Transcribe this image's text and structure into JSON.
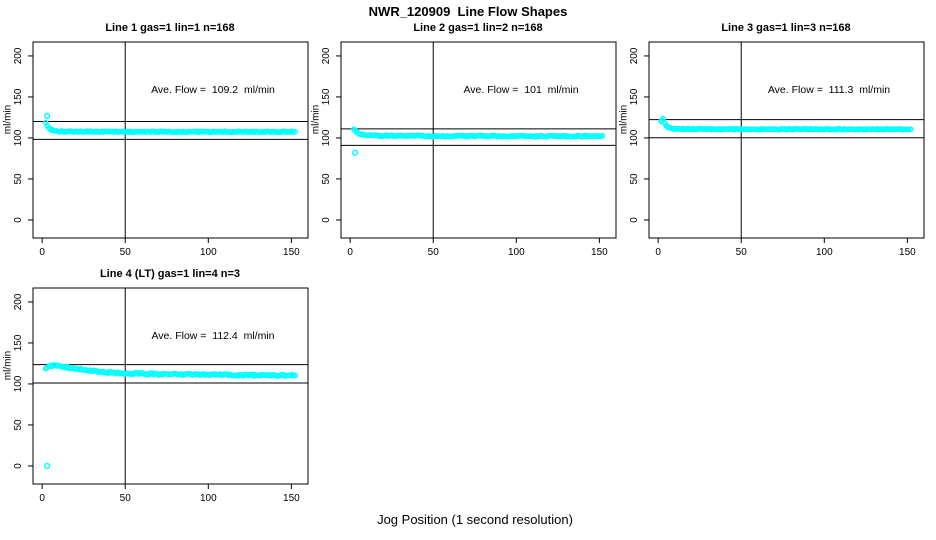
{
  "title": "NWR_120909  Line Flow Shapes",
  "chart_data": {
    "type": "scatter",
    "title": "NWR_120909  Line Flow Shapes",
    "xlabel": "Jog Position (1 second resolution)",
    "ylabel": "ml/min",
    "point_color": "#00FFFF",
    "line_color": "#000000",
    "x_ticks": [
      0,
      50,
      100,
      150
    ],
    "y_ticks": [
      0,
      50,
      100,
      150,
      200
    ],
    "xlim": [
      -5.5,
      160
    ],
    "ylim": [
      -22,
      217
    ],
    "v_line_x": 50,
    "x_start": 2,
    "x_end": 152,
    "x_step": 1,
    "legend": "none",
    "grid": false,
    "panels": [
      {
        "title": "Line 1 gas=1 lin=1 n=168",
        "n": 168,
        "ave_flow": 109.2,
        "ave_flow_label": "Ave. Flow =  109.2  ml/min",
        "h_lines": [
          98.3,
          120.1
        ],
        "outliers": [
          [
            3,
            127
          ]
        ],
        "profile": [
          [
            2,
            119
          ],
          [
            3,
            115
          ],
          [
            4,
            112
          ],
          [
            5,
            110.6
          ],
          [
            6,
            109.6
          ],
          [
            8,
            108.7
          ],
          [
            10,
            108.3
          ],
          [
            14,
            108.0
          ],
          [
            20,
            107.8
          ],
          [
            30,
            107.7
          ],
          [
            60,
            107.6
          ],
          [
            100,
            107.5
          ],
          [
            152,
            107.5
          ]
        ],
        "noise": 0.6,
        "seed": 101
      },
      {
        "title": "Line 2 gas=1 lin=2 n=168",
        "n": 168,
        "ave_flow": 101,
        "ave_flow_label": "Ave. Flow =  101  ml/min",
        "h_lines": [
          90.9,
          111.1
        ],
        "outliers": [
          [
            3,
            82
          ]
        ],
        "profile": [
          [
            2,
            111
          ],
          [
            3,
            109.5
          ],
          [
            4,
            107.5
          ],
          [
            5,
            106
          ],
          [
            6,
            105
          ],
          [
            8,
            104
          ],
          [
            10,
            103.5
          ],
          [
            14,
            103
          ],
          [
            20,
            102.7
          ],
          [
            30,
            102.5
          ],
          [
            60,
            102.3
          ],
          [
            100,
            102.2
          ],
          [
            152,
            102.2
          ]
        ],
        "noise": 0.7,
        "seed": 202
      },
      {
        "title": "Line 3 gas=1 lin=3 n=168",
        "n": 168,
        "ave_flow": 111.3,
        "ave_flow_label": "Ave. Flow =  111.3  ml/min",
        "h_lines": [
          100.2,
          122.4
        ],
        "outliers": [
          [
            2,
            120.5
          ]
        ],
        "profile": [
          [
            2,
            121
          ],
          [
            3,
            123.5
          ],
          [
            4,
            118
          ],
          [
            5,
            115
          ],
          [
            6,
            113
          ],
          [
            8,
            111.7
          ],
          [
            10,
            111.2
          ],
          [
            14,
            110.9
          ],
          [
            20,
            110.8
          ],
          [
            30,
            110.7
          ],
          [
            60,
            110.6
          ],
          [
            100,
            110.6
          ],
          [
            152,
            110.6
          ]
        ],
        "noise": 0.5,
        "seed": 303
      },
      {
        "title": "Line 4 (LT) gas=1 lin=4 n=3",
        "n": 3,
        "ave_flow": 112.4,
        "ave_flow_label": "Ave. Flow =  112.4  ml/min",
        "h_lines": [
          101.2,
          123.6
        ],
        "outliers": [
          [
            3,
            0
          ]
        ],
        "profile": [
          [
            2,
            119
          ],
          [
            3,
            120.5
          ],
          [
            5,
            122
          ],
          [
            8,
            122.3
          ],
          [
            12,
            121.2
          ],
          [
            16,
            119.8
          ],
          [
            20,
            118.3
          ],
          [
            25,
            116.8
          ],
          [
            30,
            115.7
          ],
          [
            40,
            114.2
          ],
          [
            50,
            113.2
          ],
          [
            60,
            112.5
          ],
          [
            80,
            111.6
          ],
          [
            100,
            111.1
          ],
          [
            120,
            110.8
          ],
          [
            152,
            110.5
          ]
        ],
        "noise": 1.1,
        "seed": 404
      }
    ]
  }
}
